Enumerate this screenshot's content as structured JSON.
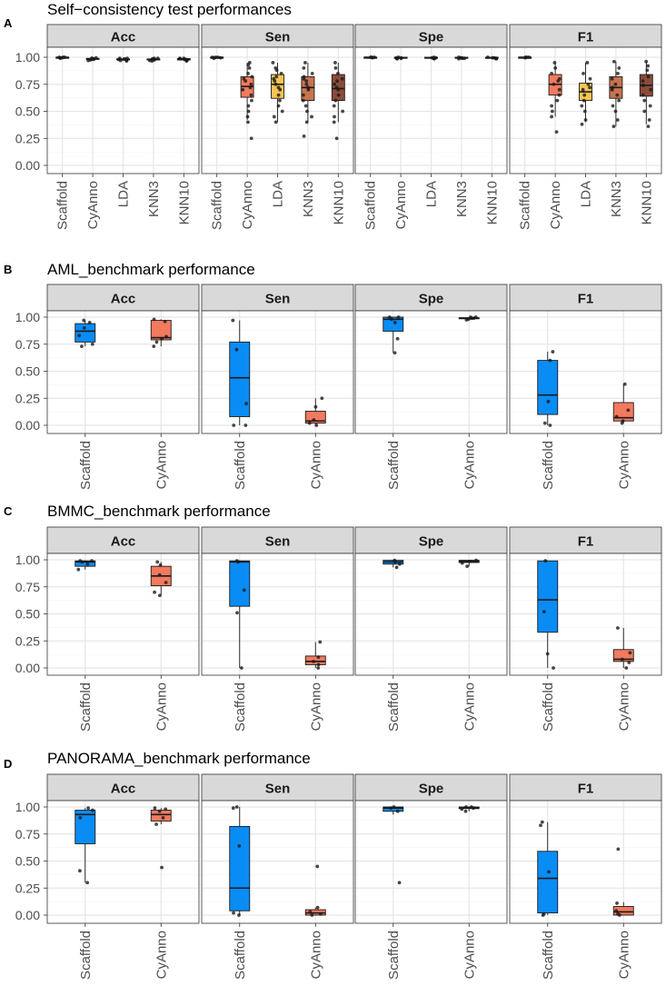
{
  "chart_data": [
    {
      "letter": "A",
      "type": "boxplot",
      "title": "Self−consistency test performances",
      "ylim": [
        0,
        1
      ],
      "yticks": [
        "0.00",
        "0.25",
        "0.50",
        "0.75",
        "1.00"
      ],
      "categories": [
        "Scaffold",
        "CyAnno",
        "LDA",
        "KNN3",
        "KNN10"
      ],
      "colors": [
        "#0a8cf5",
        "#f27a5e",
        "#f6c453",
        "#c9734f",
        "#8c4a3a"
      ],
      "facets": [
        {
          "name": "Acc",
          "boxes": [
            {
              "q1": 0.995,
              "median": 1.0,
              "q3": 1.0,
              "lo": 0.99,
              "hi": 1.0,
              "points": [
                1.0,
                1.0,
                1.0,
                0.995,
                0.99
              ]
            },
            {
              "q1": 0.98,
              "median": 0.985,
              "q3": 0.99,
              "lo": 0.97,
              "hi": 0.995,
              "points": [
                0.97,
                0.98,
                0.985,
                0.99,
                0.995,
                0.98,
                0.99,
                0.975
              ]
            },
            {
              "q1": 0.975,
              "median": 0.98,
              "q3": 0.985,
              "lo": 0.965,
              "hi": 0.995,
              "points": [
                0.965,
                0.975,
                0.98,
                0.985,
                0.99,
                0.97,
                0.98,
                0.99
              ]
            },
            {
              "q1": 0.975,
              "median": 0.98,
              "q3": 0.985,
              "lo": 0.965,
              "hi": 0.995,
              "points": [
                0.965,
                0.975,
                0.98,
                0.985,
                0.99,
                0.97,
                0.98,
                0.99
              ]
            },
            {
              "q1": 0.975,
              "median": 0.98,
              "q3": 0.988,
              "lo": 0.965,
              "hi": 0.995,
              "points": [
                0.965,
                0.975,
                0.98,
                0.985,
                0.99,
                0.97,
                0.98,
                0.99
              ]
            }
          ]
        },
        {
          "name": "Sen",
          "boxes": [
            {
              "q1": 0.995,
              "median": 1.0,
              "q3": 1.0,
              "lo": 0.99,
              "hi": 1.0,
              "points": [
                1.0,
                1.0,
                1.0,
                0.995,
                0.99
              ]
            },
            {
              "q1": 0.63,
              "median": 0.73,
              "q3": 0.82,
              "lo": 0.42,
              "hi": 0.95,
              "points": [
                0.25,
                0.4,
                0.45,
                0.5,
                0.55,
                0.6,
                0.65,
                0.7,
                0.72,
                0.75,
                0.78,
                0.8,
                0.82,
                0.85,
                0.9,
                0.93,
                0.95
              ]
            },
            {
              "q1": 0.62,
              "median": 0.75,
              "q3": 0.84,
              "lo": 0.4,
              "hi": 0.95,
              "points": [
                0.4,
                0.45,
                0.5,
                0.55,
                0.6,
                0.65,
                0.7,
                0.72,
                0.75,
                0.78,
                0.8,
                0.82,
                0.85,
                0.88,
                0.9,
                0.95
              ]
            },
            {
              "q1": 0.6,
              "median": 0.72,
              "q3": 0.82,
              "lo": 0.4,
              "hi": 0.95,
              "points": [
                0.27,
                0.4,
                0.45,
                0.5,
                0.55,
                0.6,
                0.65,
                0.7,
                0.72,
                0.75,
                0.78,
                0.8,
                0.82,
                0.85,
                0.9,
                0.95
              ]
            },
            {
              "q1": 0.6,
              "median": 0.71,
              "q3": 0.84,
              "lo": 0.4,
              "hi": 0.95,
              "points": [
                0.25,
                0.4,
                0.45,
                0.5,
                0.55,
                0.6,
                0.65,
                0.7,
                0.72,
                0.75,
                0.78,
                0.8,
                0.85,
                0.9,
                0.95
              ]
            }
          ]
        },
        {
          "name": "Spe",
          "boxes": [
            {
              "q1": 0.995,
              "median": 1.0,
              "q3": 1.0,
              "lo": 0.99,
              "hi": 1.0,
              "points": [
                1.0,
                1.0,
                1.0,
                0.995
              ]
            },
            {
              "q1": 0.99,
              "median": 0.995,
              "q3": 1.0,
              "lo": 0.985,
              "hi": 1.0,
              "points": [
                0.985,
                0.99,
                0.995,
                1.0,
                0.99,
                0.995
              ]
            },
            {
              "q1": 0.99,
              "median": 0.995,
              "q3": 1.0,
              "lo": 0.985,
              "hi": 1.0,
              "points": [
                0.985,
                0.99,
                0.995,
                1.0,
                0.99,
                0.995
              ]
            },
            {
              "q1": 0.99,
              "median": 0.995,
              "q3": 1.0,
              "lo": 0.985,
              "hi": 1.0,
              "points": [
                0.985,
                0.99,
                0.995,
                1.0,
                0.99,
                0.995
              ]
            },
            {
              "q1": 0.99,
              "median": 0.995,
              "q3": 1.0,
              "lo": 0.985,
              "hi": 1.0,
              "points": [
                0.985,
                0.99,
                0.995,
                1.0,
                0.99,
                0.995
              ]
            }
          ]
        },
        {
          "name": "F1",
          "boxes": [
            {
              "q1": 0.995,
              "median": 1.0,
              "q3": 1.0,
              "lo": 0.99,
              "hi": 1.0,
              "points": [
                1.0,
                1.0,
                1.0,
                0.995
              ]
            },
            {
              "q1": 0.65,
              "median": 0.75,
              "q3": 0.84,
              "lo": 0.45,
              "hi": 0.95,
              "points": [
                0.31,
                0.45,
                0.5,
                0.55,
                0.6,
                0.65,
                0.7,
                0.75,
                0.78,
                0.8,
                0.85,
                0.9,
                0.95
              ]
            },
            {
              "q1": 0.6,
              "median": 0.68,
              "q3": 0.76,
              "lo": 0.4,
              "hi": 0.95,
              "points": [
                0.38,
                0.42,
                0.5,
                0.55,
                0.6,
                0.65,
                0.7,
                0.72,
                0.75,
                0.8,
                0.85,
                0.95
              ]
            },
            {
              "q1": 0.62,
              "median": 0.72,
              "q3": 0.82,
              "lo": 0.36,
              "hi": 0.96,
              "points": [
                0.36,
                0.42,
                0.5,
                0.55,
                0.6,
                0.65,
                0.7,
                0.72,
                0.75,
                0.8,
                0.85,
                0.9,
                0.96
              ]
            },
            {
              "q1": 0.64,
              "median": 0.74,
              "q3": 0.84,
              "lo": 0.38,
              "hi": 0.96,
              "points": [
                0.36,
                0.42,
                0.5,
                0.55,
                0.6,
                0.65,
                0.7,
                0.74,
                0.78,
                0.82,
                0.88,
                0.92,
                0.96
              ]
            }
          ]
        }
      ]
    },
    {
      "letter": "B",
      "type": "boxplot",
      "title": "AML_benchmark performance",
      "ylim": [
        0,
        1
      ],
      "yticks": [
        "0.00",
        "0.25",
        "0.50",
        "0.75",
        "1.00"
      ],
      "categories": [
        "Scaffold",
        "CyAnno"
      ],
      "colors": [
        "#0a8cf5",
        "#f27a5e"
      ],
      "facets": [
        {
          "name": "Acc",
          "boxes": [
            {
              "q1": 0.77,
              "median": 0.87,
              "q3": 0.94,
              "lo": 0.73,
              "hi": 0.97,
              "points": [
                0.73,
                0.75,
                0.83,
                0.9,
                0.95,
                0.97
              ]
            },
            {
              "q1": 0.79,
              "median": 0.81,
              "q3": 0.97,
              "lo": 0.73,
              "hi": 0.98,
              "points": [
                0.73,
                0.77,
                0.8,
                0.82,
                0.96,
                0.98
              ]
            }
          ]
        },
        {
          "name": "Sen",
          "boxes": [
            {
              "q1": 0.08,
              "median": 0.44,
              "q3": 0.77,
              "lo": 0.0,
              "hi": 0.97,
              "points": [
                0.0,
                0.0,
                0.2,
                0.7,
                0.97
              ]
            },
            {
              "q1": 0.02,
              "median": 0.04,
              "q3": 0.13,
              "lo": 0.0,
              "hi": 0.25,
              "points": [
                0.0,
                0.02,
                0.05,
                0.17,
                0.25
              ]
            }
          ]
        },
        {
          "name": "Spe",
          "boxes": [
            {
              "q1": 0.87,
              "median": 0.98,
              "q3": 1.0,
              "lo": 0.67,
              "hi": 1.0,
              "points": [
                0.67,
                0.8,
                0.95,
                0.98,
                1.0,
                1.0
              ]
            },
            {
              "q1": 0.985,
              "median": 0.99,
              "q3": 0.995,
              "lo": 0.975,
              "hi": 1.0,
              "points": [
                0.975,
                0.98,
                0.99,
                0.99,
                1.0,
                1.0
              ]
            }
          ]
        },
        {
          "name": "F1",
          "boxes": [
            {
              "q1": 0.1,
              "median": 0.28,
              "q3": 0.6,
              "lo": 0.0,
              "hi": 0.68,
              "points": [
                0.0,
                0.02,
                0.22,
                0.6,
                0.68
              ]
            },
            {
              "q1": 0.04,
              "median": 0.07,
              "q3": 0.21,
              "lo": 0.02,
              "hi": 0.38,
              "points": [
                0.02,
                0.04,
                0.08,
                0.14,
                0.38
              ]
            }
          ]
        }
      ]
    },
    {
      "letter": "C",
      "type": "boxplot",
      "title": "BMMC_benchmark performance",
      "ylim": [
        0,
        1
      ],
      "yticks": [
        "0.00",
        "0.25",
        "0.50",
        "0.75",
        "1.00"
      ],
      "categories": [
        "Scaffold",
        "CyAnno"
      ],
      "colors": [
        "#0a8cf5",
        "#f27a5e"
      ],
      "facets": [
        {
          "name": "Acc",
          "boxes": [
            {
              "q1": 0.94,
              "median": 0.98,
              "q3": 0.99,
              "lo": 0.91,
              "hi": 0.995,
              "points": [
                0.91,
                0.96,
                0.98,
                0.99,
                0.99
              ]
            },
            {
              "q1": 0.76,
              "median": 0.85,
              "q3": 0.94,
              "lo": 0.67,
              "hi": 0.98,
              "points": [
                0.67,
                0.7,
                0.79,
                0.86,
                0.95,
                0.98
              ]
            }
          ]
        },
        {
          "name": "Sen",
          "boxes": [
            {
              "q1": 0.57,
              "median": 0.98,
              "q3": 0.99,
              "lo": 0.0,
              "hi": 0.995,
              "points": [
                0.0,
                0.51,
                0.72,
                0.98,
                0.99
              ]
            },
            {
              "q1": 0.03,
              "median": 0.06,
              "q3": 0.11,
              "lo": 0.0,
              "hi": 0.24,
              "points": [
                0.0,
                0.03,
                0.06,
                0.1,
                0.24
              ]
            }
          ]
        },
        {
          "name": "Spe",
          "boxes": [
            {
              "q1": 0.96,
              "median": 0.98,
              "q3": 0.995,
              "lo": 0.93,
              "hi": 1.0,
              "points": [
                0.93,
                0.96,
                0.98,
                0.995
              ]
            },
            {
              "q1": 0.975,
              "median": 0.985,
              "q3": 0.995,
              "lo": 0.94,
              "hi": 1.0,
              "points": [
                0.94,
                0.97,
                0.985,
                0.995
              ]
            }
          ]
        },
        {
          "name": "F1",
          "boxes": [
            {
              "q1": 0.33,
              "median": 0.63,
              "q3": 0.99,
              "lo": 0.0,
              "hi": 0.995,
              "points": [
                0.0,
                0.13,
                0.52,
                0.99
              ]
            },
            {
              "q1": 0.06,
              "median": 0.08,
              "q3": 0.17,
              "lo": 0.0,
              "hi": 0.37,
              "points": [
                0.0,
                0.05,
                0.08,
                0.14,
                0.37
              ]
            }
          ]
        }
      ]
    },
    {
      "letter": "D",
      "type": "boxplot",
      "title": "PANORAMA_benchmark performance",
      "ylim": [
        0,
        1
      ],
      "yticks": [
        "0.00",
        "0.25",
        "0.50",
        "0.75",
        "1.00"
      ],
      "categories": [
        "Scaffold",
        "CyAnno"
      ],
      "colors": [
        "#0a8cf5",
        "#f27a5e"
      ],
      "facets": [
        {
          "name": "Acc",
          "boxes": [
            {
              "q1": 0.66,
              "median": 0.93,
              "q3": 0.97,
              "lo": 0.3,
              "hi": 0.99,
              "points": [
                0.3,
                0.41,
                0.9,
                0.97,
                0.99
              ]
            },
            {
              "q1": 0.87,
              "median": 0.93,
              "q3": 0.97,
              "lo": 0.84,
              "hi": 0.99,
              "points": [
                0.44,
                0.84,
                0.9,
                0.96,
                0.98,
                0.99
              ]
            }
          ]
        },
        {
          "name": "Sen",
          "boxes": [
            {
              "q1": 0.04,
              "median": 0.25,
              "q3": 0.82,
              "lo": 0.0,
              "hi": 1.0,
              "points": [
                0.0,
                0.02,
                0.64,
                0.99,
                1.0
              ]
            },
            {
              "q1": 0.0,
              "median": 0.02,
              "q3": 0.05,
              "lo": 0.0,
              "hi": 0.07,
              "points": [
                0.0,
                0.01,
                0.03,
                0.07,
                0.45
              ]
            }
          ]
        },
        {
          "name": "Spe",
          "boxes": [
            {
              "q1": 0.96,
              "median": 0.99,
              "q3": 1.0,
              "lo": 0.93,
              "hi": 1.0,
              "points": [
                0.3,
                0.96,
                0.99,
                1.0
              ]
            },
            {
              "q1": 0.985,
              "median": 0.99,
              "q3": 1.0,
              "lo": 0.96,
              "hi": 1.0,
              "points": [
                0.96,
                0.98,
                0.99,
                1.0,
                1.0
              ]
            }
          ]
        },
        {
          "name": "F1",
          "boxes": [
            {
              "q1": 0.02,
              "median": 0.34,
              "q3": 0.59,
              "lo": 0.0,
              "hi": 0.86,
              "points": [
                0.0,
                0.01,
                0.4,
                0.83,
                0.86
              ]
            },
            {
              "q1": 0.0,
              "median": 0.03,
              "q3": 0.08,
              "lo": 0.0,
              "hi": 0.12,
              "points": [
                0.0,
                0.01,
                0.04,
                0.11,
                0.61
              ]
            }
          ]
        }
      ]
    }
  ]
}
